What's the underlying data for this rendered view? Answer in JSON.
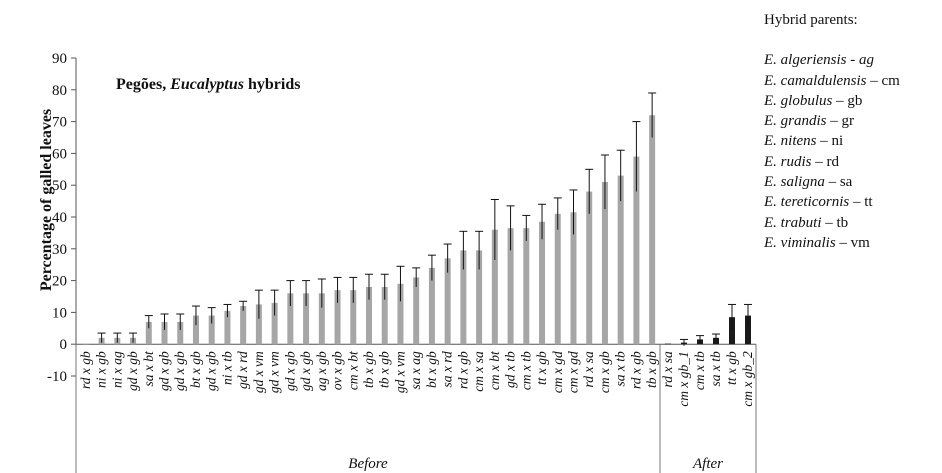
{
  "chart_data": {
    "type": "bar",
    "title_prefix": "Pegões, ",
    "title_italic": "Eucalyptus",
    "title_suffix": " hybrids",
    "ylabel": "Percentage of galled leaves",
    "ylim": [
      -10,
      90
    ],
    "yticks": [
      "-10",
      "0",
      "10",
      "20",
      "30",
      "40",
      "50",
      "60",
      "70",
      "80",
      "90"
    ],
    "groups": [
      {
        "label": "Before",
        "color": "#a6a6a6",
        "categories": [
          "rd x gb",
          "ni x gb",
          "ni x ag",
          "gd x gb",
          "sa x bt",
          "gd x gb",
          "gd x gb",
          "bt x gb",
          "gd x gb",
          "ni x tb",
          "gd x rd",
          "gd x vm",
          "gd x vm",
          "gd x gb",
          "gd x gb",
          "ag x gb",
          "ov x gb",
          "cm x bt",
          "tb x gb",
          "tb x gb",
          "gd x vm",
          "sa x ag",
          "bt x gb",
          "sa x rd",
          "rd x gb",
          "cm x sa",
          "cm x bt",
          "gd x tb",
          "cm x tb",
          "tt x gb",
          "cm x gd",
          "cm x gd",
          "rd x sa",
          "cm x gb",
          "sa x tb",
          "rd x gb",
          "tb x gb"
        ],
        "values": [
          0,
          2,
          2,
          2,
          7,
          7,
          7,
          9,
          9,
          10.5,
          12,
          12.5,
          13,
          16,
          16,
          16,
          17,
          17,
          18,
          18,
          19,
          21,
          24,
          27,
          29.5,
          29.5,
          36,
          36.5,
          36.5,
          38.5,
          41,
          41.5,
          48,
          51,
          53,
          59,
          72
        ],
        "errors": [
          0,
          1.5,
          1.5,
          1.5,
          2,
          2.5,
          2.5,
          3,
          2.5,
          2,
          1.5,
          4.5,
          4,
          4,
          4,
          4.5,
          4,
          4,
          4,
          4,
          5.5,
          3,
          4,
          4.5,
          6,
          6,
          9.5,
          7,
          4,
          5.5,
          5,
          7,
          7,
          8.5,
          8,
          11,
          7
        ]
      },
      {
        "label": "After",
        "color": "#1a1a1a",
        "categories": [
          "rd x sa",
          "cm x gb_1",
          "cm x tb",
          "sa x tb",
          "tt x gb",
          "cm x gb_2"
        ],
        "values": [
          0,
          0.5,
          1.5,
          2,
          8.5,
          9
        ],
        "errors": [
          0,
          1,
          1.2,
          1.2,
          4,
          3.5
        ]
      }
    ],
    "legend": {
      "heading": "Hybrid parents:",
      "items": [
        {
          "species": "E. algeriensis",
          "sep": " - ",
          "code": "ag",
          "code_italic": true
        },
        {
          "species": "E. camaldulensis",
          "sep": " – ",
          "code": "cm",
          "code_italic": false
        },
        {
          "species": "E. globulus",
          "sep": " – ",
          "code": "gb",
          "code_italic": false
        },
        {
          "species": "E. grandis",
          "sep": " – ",
          "code": "gr",
          "code_italic": false
        },
        {
          "species": "E. nitens",
          "sep": " – ",
          "code": "ni",
          "code_italic": false
        },
        {
          "species": "E. rudis",
          "sep": " – ",
          "code": "rd",
          "code_italic": false
        },
        {
          "species": "E. saligna",
          "sep": " – ",
          "code": "sa",
          "code_italic": false
        },
        {
          "species": "E. tereticornis",
          "sep": " – ",
          "code": "tt",
          "code_italic": false
        },
        {
          "species": "E. trabuti",
          "sep": " – ",
          "code": "tb",
          "code_italic": false
        },
        {
          "species": "E. viminalis",
          "sep": " – ",
          "code": "vm",
          "code_italic": false
        }
      ]
    },
    "grid": false
  }
}
